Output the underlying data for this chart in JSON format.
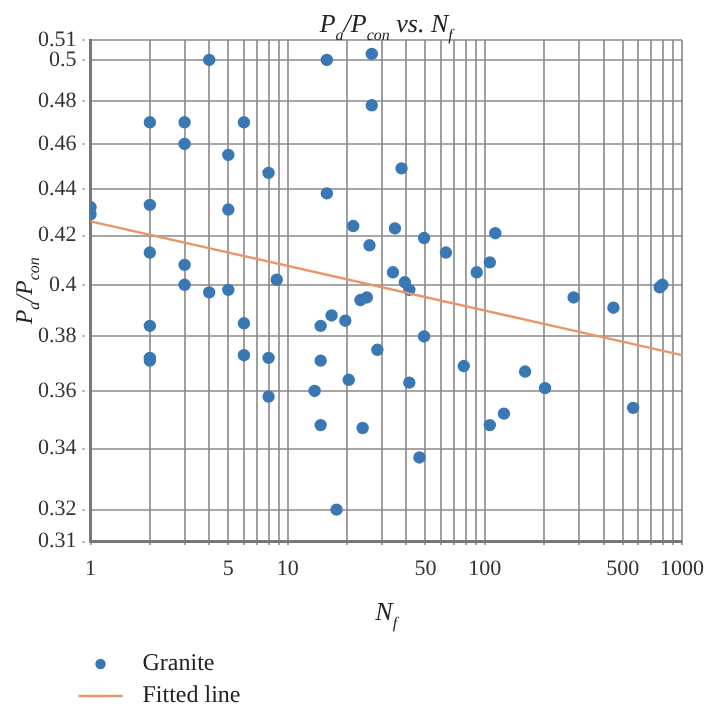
{
  "chart_data": {
    "type": "scatter",
    "title": "P$_{a}$/P$_{con}$ vs. N$_{f}$",
    "xlabel": "N$_{f}$",
    "ylabel": "P$_{a}$/P$_{con}$",
    "series": [
      {
        "name": "Granite",
        "type": "scatter",
        "marker": "circle",
        "color": "#3a78b5",
        "x": [
          1,
          1,
          2,
          2,
          2,
          2,
          2,
          2,
          3,
          3,
          3,
          3,
          4,
          4,
          5,
          5,
          5,
          6,
          6,
          6,
          8,
          8,
          8,
          8.8,
          13.7,
          14.7,
          14.7,
          14.7,
          15.8,
          15.8,
          16.7,
          17.7,
          19.6,
          20.4,
          21.5,
          23.4,
          24,
          25.2,
          26,
          26.7,
          26.7,
          28.5,
          34.2,
          35,
          37.8,
          39.3,
          41.4,
          41.4,
          46.6,
          49.2,
          49.2,
          63.5,
          78.2,
          91,
          106,
          106,
          113,
          125,
          160,
          202,
          282,
          449,
          565,
          771,
          795
        ],
        "values": [
          0.432,
          0.429,
          0.47,
          0.433,
          0.413,
          0.384,
          0.372,
          0.371,
          0.47,
          0.46,
          0.408,
          0.4,
          0.5,
          0.397,
          0.455,
          0.431,
          0.398,
          0.47,
          0.385,
          0.373,
          0.447,
          0.372,
          0.358,
          0.402,
          0.36,
          0.384,
          0.371,
          0.348,
          0.5,
          0.438,
          0.388,
          0.32,
          0.386,
          0.364,
          0.424,
          0.394,
          0.347,
          0.395,
          0.416,
          0.503,
          0.478,
          0.375,
          0.405,
          0.423,
          0.449,
          0.401,
          0.398,
          0.363,
          0.337,
          0.419,
          0.38,
          0.413,
          0.369,
          0.405,
          0.409,
          0.348,
          0.421,
          0.352,
          0.367,
          0.361,
          0.395,
          0.391,
          0.354,
          0.399,
          0.4
        ]
      },
      {
        "name": "Fitted line",
        "type": "line",
        "marker": "none",
        "color": "#e8956a",
        "x": [
          1,
          1000
        ],
        "values": [
          0.426,
          0.373
        ]
      }
    ],
    "xlim": [
      1,
      1000
    ],
    "xticks": [
      1,
      {
        "value": 2,
        "label": null
      },
      {
        "value": 3,
        "label": null
      },
      {
        "value": 4,
        "label": null
      },
      5,
      {
        "value": 6,
        "label": null
      },
      {
        "value": 7,
        "label": null
      },
      {
        "value": 8,
        "label": null
      },
      {
        "value": 9,
        "label": null
      },
      10,
      {
        "value": 20,
        "label": null
      },
      {
        "value": 30,
        "label": null
      },
      {
        "value": 40,
        "label": null
      },
      50,
      {
        "value": 60,
        "label": null
      },
      {
        "value": 70,
        "label": null
      },
      {
        "value": 80,
        "label": null
      },
      {
        "value": 90,
        "label": null
      },
      100,
      {
        "value": 200,
        "label": null
      },
      {
        "value": 300,
        "label": null
      },
      {
        "value": 400,
        "label": null
      },
      500,
      {
        "value": 600,
        "label": null
      },
      {
        "value": 700,
        "label": null
      },
      {
        "value": 800,
        "label": null
      },
      {
        "value": 900,
        "label": null
      },
      1000
    ],
    "ylim": [
      0.31,
      0.51
    ],
    "yticks": [
      0.31,
      0.32,
      0.34,
      0.36,
      0.38,
      0.4,
      0.42,
      0.44,
      0.46,
      0.48,
      0.5,
      0.51
    ],
    "log": "xy",
    "grid": true,
    "legend": "bottom left",
    "line_style": "solid"
  }
}
